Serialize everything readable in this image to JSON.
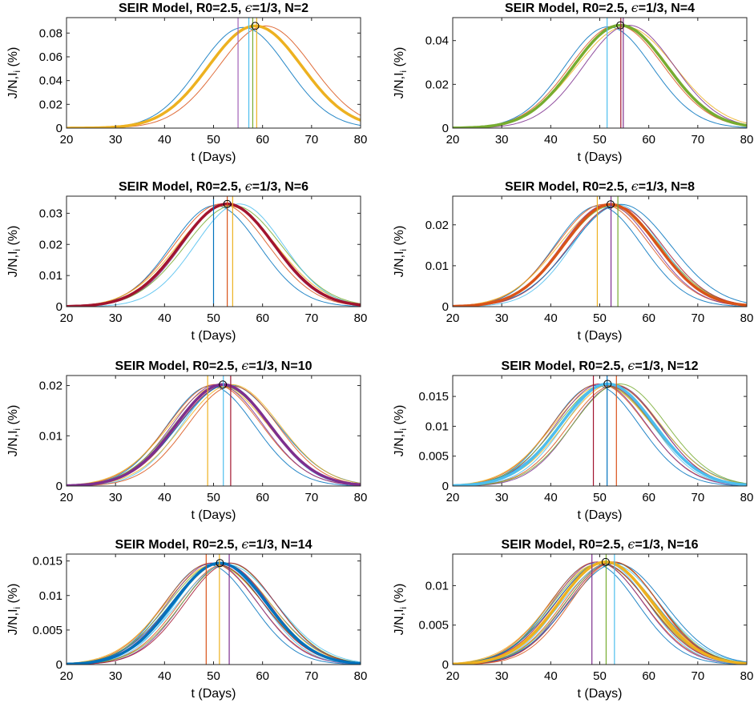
{
  "chart_data": [
    {
      "type": "line",
      "title": "SEIR Model, R0=2.5, ϵ=1/3, N=2",
      "xlabel": "t (Days)",
      "ylabel": "J/N,I_i (%)",
      "xlim": [
        20,
        80
      ],
      "ylim": [
        0,
        0.093
      ],
      "xticks": [
        "20",
        "30",
        "40",
        "50",
        "60",
        "70",
        "80"
      ],
      "yticks": [
        {
          "v": 0,
          "label": "0"
        },
        {
          "v": 0.02,
          "label": "0.02"
        },
        {
          "v": 0.04,
          "label": "0.04"
        },
        {
          "v": 0.06,
          "label": "0.06"
        },
        {
          "v": 0.08,
          "label": "0.08"
        }
      ],
      "peak_t": 58.5,
      "peak_value": 0.086,
      "width": 9.5,
      "aggregate_color": "#EDB120",
      "series_count": 2,
      "vlines": [
        {
          "t": 55.0,
          "color": "#A263B8"
        },
        {
          "t": 57.2,
          "color": "#4DBEEE"
        },
        {
          "t": 58.0,
          "color": "#77AC30"
        },
        {
          "t": 58.8,
          "color": "#EDB120"
        }
      ]
    },
    {
      "type": "line",
      "title": "SEIR Model, R0=2.5, ϵ=1/3, N=4",
      "xlabel": "t (Days)",
      "ylabel": "J/N,I_i (%)",
      "xlim": [
        20,
        80
      ],
      "ylim": [
        0,
        0.0505
      ],
      "xticks": [
        "20",
        "30",
        "40",
        "50",
        "60",
        "70",
        "80"
      ],
      "yticks": [
        {
          "v": 0,
          "label": "0"
        },
        {
          "v": 0.02,
          "label": "0.02"
        },
        {
          "v": 0.04,
          "label": "0.04"
        }
      ],
      "peak_t": 54.2,
      "peak_value": 0.047,
      "width": 9.5,
      "aggregate_color": "#77AC30",
      "series_count": 4,
      "vlines": [
        {
          "t": 51.5,
          "color": "#4DBEEE"
        },
        {
          "t": 54.3,
          "color": "#A2142F"
        },
        {
          "t": 54.8,
          "color": "#7E2F8E"
        }
      ]
    },
    {
      "type": "line",
      "title": "SEIR Model, R0=2.5, ϵ=1/3, N=6",
      "xlabel": "t (Days)",
      "ylabel": "J/N,I_i (%)",
      "xlim": [
        20,
        80
      ],
      "ylim": [
        0,
        0.0355
      ],
      "xticks": [
        "20",
        "30",
        "40",
        "50",
        "60",
        "70",
        "80"
      ],
      "yticks": [
        {
          "v": 0,
          "label": "0"
        },
        {
          "v": 0.01,
          "label": "0.01"
        },
        {
          "v": 0.02,
          "label": "0.02"
        },
        {
          "v": 0.03,
          "label": "0.03"
        }
      ],
      "peak_t": 52.8,
      "peak_value": 0.033,
      "width": 9.5,
      "aggregate_color": "#A2142F",
      "series_count": 6,
      "vlines": [
        {
          "t": 50.0,
          "color": "#0072BD"
        },
        {
          "t": 52.8,
          "color": "#D95319"
        },
        {
          "t": 53.9,
          "color": "#EDB120"
        }
      ]
    },
    {
      "type": "line",
      "title": "SEIR Model, R0=2.5, ϵ=1/3, N=8",
      "xlabel": "t (Days)",
      "ylabel": "J/N,I_i (%)",
      "xlim": [
        20,
        80
      ],
      "ylim": [
        0,
        0.027
      ],
      "xticks": [
        "20",
        "30",
        "40",
        "50",
        "60",
        "70",
        "80"
      ],
      "yticks": [
        {
          "v": 0,
          "label": "0"
        },
        {
          "v": 0.01,
          "label": "0.01"
        },
        {
          "v": 0.02,
          "label": "0.02"
        }
      ],
      "peak_t": 52.2,
      "peak_value": 0.025,
      "width": 9.5,
      "aggregate_color": "#D95319",
      "series_count": 8,
      "vlines": [
        {
          "t": 49.5,
          "color": "#EDB120"
        },
        {
          "t": 52.3,
          "color": "#7E2F8E"
        },
        {
          "t": 53.7,
          "color": "#77AC30"
        }
      ]
    },
    {
      "type": "line",
      "title": "SEIR Model, R0=2.5, ϵ=1/3, N=10",
      "xlabel": "t (Days)",
      "ylabel": "J/N,I_i (%)",
      "xlim": [
        20,
        80
      ],
      "ylim": [
        0,
        0.022
      ],
      "xticks": [
        "20",
        "30",
        "40",
        "50",
        "60",
        "70",
        "80"
      ],
      "yticks": [
        {
          "v": 0,
          "label": "0"
        },
        {
          "v": 0.01,
          "label": "0.01"
        },
        {
          "v": 0.02,
          "label": "0.02"
        }
      ],
      "peak_t": 51.9,
      "peak_value": 0.0202,
      "width": 9.5,
      "aggregate_color": "#7E2F8E",
      "series_count": 10,
      "vlines": [
        {
          "t": 48.8,
          "color": "#EDB120"
        },
        {
          "t": 52.0,
          "color": "#4DBEEE"
        },
        {
          "t": 53.5,
          "color": "#A2142F"
        }
      ]
    },
    {
      "type": "line",
      "title": "SEIR Model, R0=2.5, ϵ=1/3, N=12",
      "xlabel": "t (Days)",
      "ylabel": "J/N,I_i (%)",
      "xlim": [
        20,
        80
      ],
      "ylim": [
        0,
        0.0185
      ],
      "xticks": [
        "20",
        "30",
        "40",
        "50",
        "60",
        "70",
        "80"
      ],
      "yticks": [
        {
          "v": 0,
          "label": "0"
        },
        {
          "v": 0.005,
          "label": "0.005"
        },
        {
          "v": 0.01,
          "label": "0.01"
        },
        {
          "v": 0.015,
          "label": "0.015"
        }
      ],
      "peak_t": 51.6,
      "peak_value": 0.0171,
      "width": 9.5,
      "aggregate_color": "#4DBEEE",
      "series_count": 12,
      "vlines": [
        {
          "t": 48.7,
          "color": "#A2142F"
        },
        {
          "t": 51.5,
          "color": "#0072BD"
        },
        {
          "t": 53.4,
          "color": "#D95319"
        }
      ]
    },
    {
      "type": "line",
      "title": "SEIR Model, R0=2.5, ϵ=1/3, N=14",
      "xlabel": "t (Days)",
      "ylabel": "J/N,I_i (%)",
      "xlim": [
        20,
        80
      ],
      "ylim": [
        0,
        0.016
      ],
      "xticks": [
        "20",
        "30",
        "40",
        "50",
        "60",
        "70",
        "80"
      ],
      "yticks": [
        {
          "v": 0,
          "label": "0"
        },
        {
          "v": 0.005,
          "label": "0.005"
        },
        {
          "v": 0.01,
          "label": "0.01"
        },
        {
          "v": 0.015,
          "label": "0.015"
        }
      ],
      "peak_t": 51.3,
      "peak_value": 0.0147,
      "width": 9.5,
      "aggregate_color": "#0072BD",
      "series_count": 14,
      "vlines": [
        {
          "t": 48.5,
          "color": "#D95319"
        },
        {
          "t": 51.2,
          "color": "#EDB120"
        },
        {
          "t": 53.2,
          "color": "#7E2F8E"
        }
      ]
    },
    {
      "type": "line",
      "title": "SEIR Model, R0=2.5, ϵ=1/3, N=16",
      "xlabel": "t (Days)",
      "ylabel": "J/N,I_i (%)",
      "xlim": [
        20,
        80
      ],
      "ylim": [
        0,
        0.014
      ],
      "xticks": [
        "20",
        "30",
        "40",
        "50",
        "60",
        "70",
        "80"
      ],
      "yticks": [
        {
          "v": 0,
          "label": "0"
        },
        {
          "v": 0.005,
          "label": "0.005"
        },
        {
          "v": 0.01,
          "label": "0.01"
        }
      ],
      "peak_t": 51.2,
      "peak_value": 0.013,
      "width": 9.5,
      "aggregate_color": "#EDB120",
      "series_count": 16,
      "vlines": [
        {
          "t": 48.4,
          "color": "#7E2F8E"
        },
        {
          "t": 51.3,
          "color": "#77AC30"
        },
        {
          "t": 53.0,
          "color": "#4DBEEE"
        }
      ]
    }
  ],
  "palette": [
    "#0072BD",
    "#D95319",
    "#EDB120",
    "#7E2F8E",
    "#77AC30",
    "#4DBEEE",
    "#A2142F"
  ]
}
